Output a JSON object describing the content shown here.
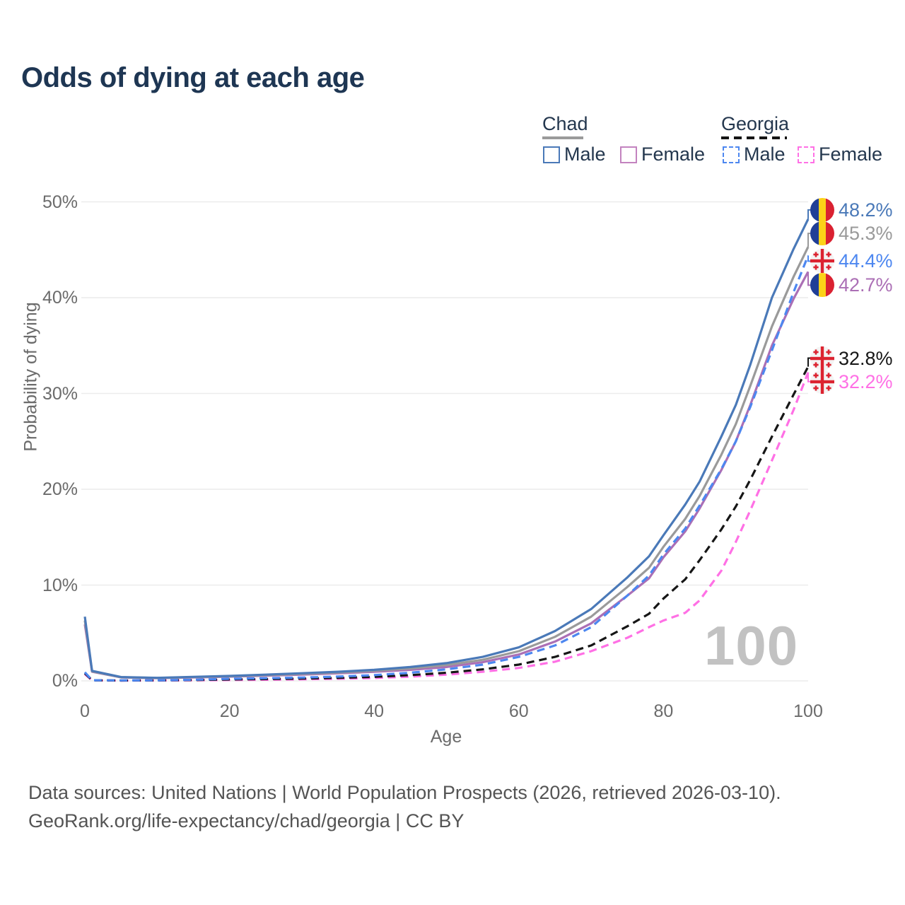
{
  "title": "Odds of dying at each age",
  "watermark": "100",
  "legend": {
    "groups": [
      {
        "label": "Chad",
        "line_style": "solid",
        "line_color": "#9a9a9a",
        "items": [
          {
            "label": "Male",
            "color": "#4a79b8",
            "dash": false
          },
          {
            "label": "Female",
            "color": "#c383bf",
            "dash": false
          }
        ]
      },
      {
        "label": "Georgia",
        "line_style": "dashed",
        "line_color": "#141414",
        "items": [
          {
            "label": "Male",
            "color": "#4d87f0",
            "dash": true
          },
          {
            "label": "Female",
            "color": "#ff70e5",
            "dash": true
          }
        ]
      }
    ]
  },
  "chart_data": {
    "type": "line",
    "title": "Odds of dying at each age",
    "xlabel": "Age",
    "ylabel": "Probability of dying",
    "xlim": [
      0,
      100
    ],
    "ylim": [
      0,
      50
    ],
    "x_ticks": [
      0,
      20,
      40,
      60,
      80,
      100
    ],
    "y_ticks": [
      "0%",
      "10%",
      "20%",
      "30%",
      "40%",
      "50%"
    ],
    "grid": "horizontal",
    "legend_position": "top-right",
    "x": [
      0,
      1,
      5,
      10,
      15,
      20,
      25,
      30,
      35,
      40,
      45,
      50,
      55,
      60,
      65,
      70,
      75,
      78,
      80,
      83,
      85,
      88,
      90,
      92,
      95,
      98,
      100
    ],
    "series": [
      {
        "id": "georgia_female",
        "country": "Georgia",
        "sex": "Female",
        "color": "#ff70e5",
        "dash": true,
        "end_label": "32.2%",
        "flag": "georgia",
        "values": [
          0.7,
          0.05,
          0.03,
          0.04,
          0.06,
          0.09,
          0.12,
          0.16,
          0.22,
          0.3,
          0.44,
          0.65,
          0.95,
          1.35,
          2.0,
          3.1,
          4.5,
          5.6,
          6.3,
          7.1,
          8.4,
          11.5,
          14.5,
          17.8,
          23.0,
          28.3,
          32.2
        ]
      },
      {
        "id": "georgia_all",
        "country": "Georgia",
        "sex": "Both",
        "color": "#161616",
        "dash": true,
        "end_label": "32.8%",
        "flag": "georgia",
        "values": [
          0.8,
          0.06,
          0.04,
          0.05,
          0.09,
          0.15,
          0.19,
          0.24,
          0.31,
          0.42,
          0.6,
          0.85,
          1.2,
          1.7,
          2.5,
          3.7,
          5.7,
          7.0,
          8.6,
          10.6,
          12.6,
          15.8,
          18.2,
          21.0,
          25.5,
          29.9,
          32.8
        ]
      },
      {
        "id": "chad_female",
        "country": "Chad",
        "sex": "Female",
        "color": "#ab6fb5",
        "dash": false,
        "end_label": "42.7%",
        "flag": "chad",
        "values": [
          5.9,
          0.95,
          0.36,
          0.28,
          0.36,
          0.44,
          0.54,
          0.66,
          0.79,
          0.95,
          1.15,
          1.45,
          1.95,
          2.75,
          4.1,
          6.0,
          8.9,
          10.7,
          12.9,
          15.6,
          18.0,
          22.0,
          25.0,
          28.8,
          35.0,
          39.9,
          42.7
        ]
      },
      {
        "id": "georgia_male",
        "country": "Georgia",
        "sex": "Male",
        "color": "#4d87f0",
        "dash": true,
        "end_label": "44.4%",
        "flag": "georgia",
        "values": [
          0.9,
          0.07,
          0.05,
          0.06,
          0.12,
          0.22,
          0.28,
          0.35,
          0.45,
          0.6,
          0.85,
          1.2,
          1.7,
          2.5,
          3.7,
          5.6,
          8.9,
          11.0,
          13.2,
          15.9,
          18.3,
          22.1,
          25.0,
          28.6,
          34.5,
          40.6,
          44.4
        ]
      },
      {
        "id": "chad_all",
        "country": "Chad",
        "sex": "Both",
        "color": "#9a9a9a",
        "dash": false,
        "end_label": "45.3%",
        "flag": "chad",
        "values": [
          6.3,
          1.0,
          0.38,
          0.3,
          0.39,
          0.48,
          0.6,
          0.73,
          0.87,
          1.05,
          1.3,
          1.65,
          2.2,
          3.1,
          4.6,
          6.7,
          9.8,
          11.8,
          14.0,
          16.9,
          19.3,
          23.6,
          26.8,
          30.8,
          37.0,
          42.2,
          45.3
        ]
      },
      {
        "id": "chad_male",
        "country": "Chad",
        "sex": "Male",
        "color": "#4a79b8",
        "dash": false,
        "end_label": "48.2%",
        "flag": "chad",
        "values": [
          6.7,
          1.05,
          0.4,
          0.32,
          0.42,
          0.52,
          0.65,
          0.8,
          0.95,
          1.15,
          1.45,
          1.85,
          2.5,
          3.5,
          5.2,
          7.5,
          10.8,
          13.0,
          15.2,
          18.4,
          20.8,
          25.5,
          28.8,
          33.0,
          40.0,
          45.1,
          48.2
        ]
      }
    ]
  },
  "end_label_texts": {
    "chad_male": "48.2%",
    "chad_all": "45.3%",
    "georgia_male": "44.4%",
    "chad_female": "42.7%",
    "georgia_all": "32.8%",
    "georgia_female": "32.2%"
  },
  "footer": {
    "line1": "Data sources: United Nations | World Population Prospects (2026, retrieved 2026-03-10).",
    "line2": "GeoRank.org/life-expectancy/chad/georgia | CC BY"
  },
  "colors": {
    "title": "#1e3653",
    "grid": "#ececec",
    "axis_text": "#6b6b6b",
    "watermark": "#c2c2c2",
    "footer_text": "#545454"
  }
}
